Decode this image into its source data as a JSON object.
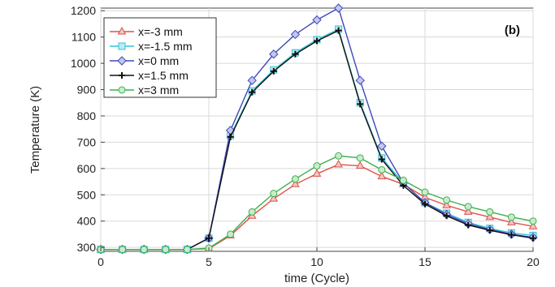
{
  "chart_data": {
    "type": "line",
    "xlabel": "time (Cycle)",
    "ylabel": "Temperature (K)",
    "panel_label": "(b)",
    "xlim": [
      0,
      20
    ],
    "ylim": [
      285,
      1210
    ],
    "xticks": [
      0,
      5,
      10,
      15,
      20
    ],
    "yticks": [
      300,
      400,
      500,
      600,
      700,
      800,
      900,
      1000,
      1100,
      1200
    ],
    "grid": true,
    "legend_position": "top-left",
    "x": [
      0,
      1,
      2,
      3,
      4,
      5,
      6,
      7,
      8,
      9,
      10,
      11,
      12,
      13,
      14,
      15,
      16,
      17,
      18,
      19,
      20
    ],
    "series": [
      {
        "name": "x=-3 mm",
        "color": "#d9534a",
        "marker": "triangle",
        "values": [
          292,
          292,
          292,
          292,
          292,
          295,
          345,
          420,
          485,
          540,
          580,
          615,
          610,
          570,
          540,
          490,
          460,
          435,
          415,
          395,
          380
        ]
      },
      {
        "name": "x=-1.5 mm",
        "color": "#35c3d8",
        "marker": "square",
        "values": [
          292,
          292,
          292,
          292,
          292,
          335,
          725,
          895,
          975,
          1040,
          1090,
          1130,
          850,
          640,
          545,
          470,
          430,
          395,
          372,
          355,
          345
        ]
      },
      {
        "name": "x=0 mm",
        "color": "#3d48b8",
        "marker": "diamond",
        "values": [
          292,
          292,
          292,
          292,
          292,
          335,
          745,
          935,
          1035,
          1110,
          1165,
          1210,
          935,
          685,
          545,
          470,
          425,
          390,
          368,
          350,
          338
        ]
      },
      {
        "name": "x=1.5 mm",
        "color": "#111111",
        "marker": "plus",
        "values": [
          292,
          292,
          292,
          292,
          292,
          335,
          720,
          890,
          970,
          1035,
          1085,
          1125,
          845,
          635,
          535,
          465,
          420,
          385,
          365,
          348,
          335
        ]
      },
      {
        "name": "x=3 mm",
        "color": "#3cb04b",
        "marker": "circle",
        "values": [
          292,
          292,
          292,
          292,
          292,
          297,
          350,
          435,
          505,
          560,
          610,
          648,
          640,
          595,
          555,
          510,
          480,
          455,
          435,
          415,
          400
        ]
      }
    ]
  }
}
